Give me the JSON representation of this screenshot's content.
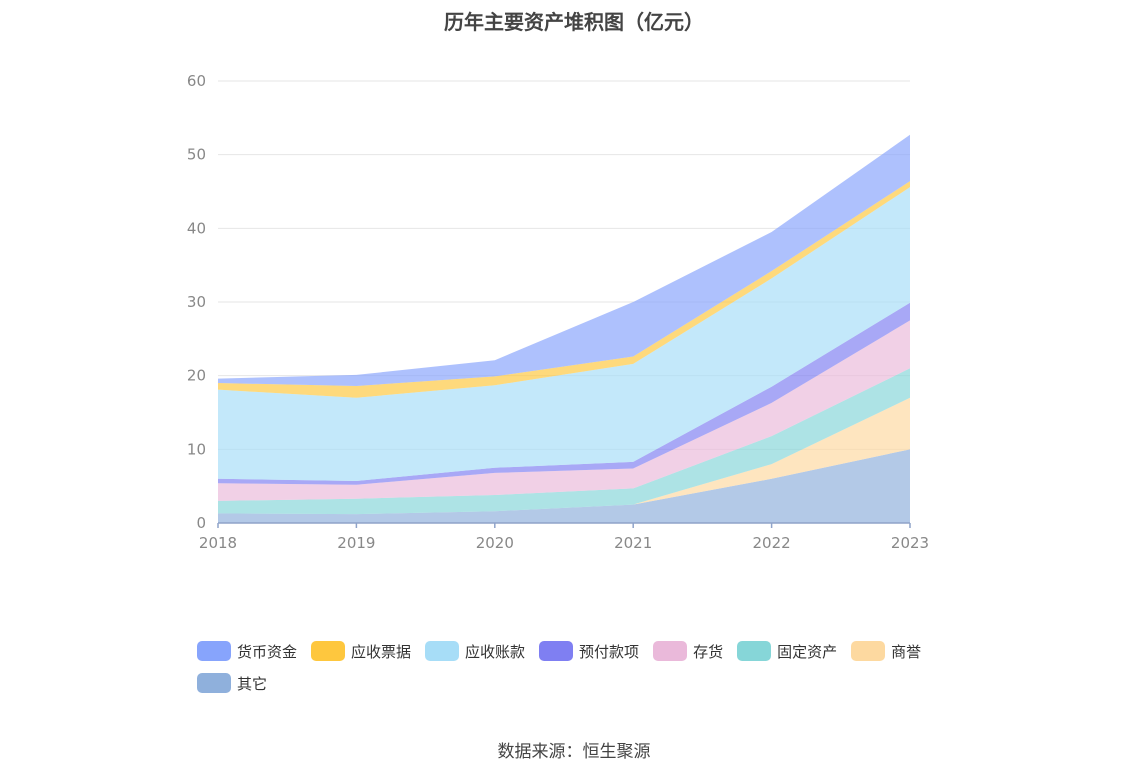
{
  "title": "历年主要资产堆积图（亿元）",
  "source": "数据来源：恒生聚源",
  "chart_data": {
    "type": "area",
    "stacked": true,
    "title": "历年主要资产堆积图（亿元）",
    "categories": [
      "2018",
      "2019",
      "2020",
      "2021",
      "2022",
      "2023"
    ],
    "ylim": [
      0,
      60
    ],
    "yticks": [
      "0",
      "10",
      "20",
      "30",
      "40",
      "50",
      "60"
    ],
    "grid": true,
    "legend_position": "bottom",
    "series": [
      {
        "name": "其它",
        "color": "#8fb0dc",
        "values": [
          1.3,
          1.2,
          1.6,
          2.5,
          6.0,
          10.0
        ]
      },
      {
        "name": "商誉",
        "color": "#fdd9a0",
        "values": [
          0.0,
          0.0,
          0.0,
          0.0,
          2.0,
          7.0
        ]
      },
      {
        "name": "固定资产",
        "color": "#86d6d8",
        "values": [
          1.7,
          2.1,
          2.2,
          2.2,
          3.8,
          4.0
        ]
      },
      {
        "name": "存货",
        "color": "#eab9da",
        "values": [
          2.4,
          1.9,
          3.0,
          2.7,
          4.5,
          6.5
        ]
      },
      {
        "name": "预付款项",
        "color": "#7f7ff2",
        "values": [
          0.6,
          0.5,
          0.7,
          0.9,
          2.2,
          2.4
        ]
      },
      {
        "name": "应收账款",
        "color": "#a7ddf7",
        "values": [
          12.1,
          11.3,
          11.2,
          13.3,
          14.7,
          15.7
        ]
      },
      {
        "name": "应收票据",
        "color": "#fec73e",
        "values": [
          0.9,
          1.6,
          1.2,
          1.0,
          1.0,
          0.8
        ]
      },
      {
        "name": "货币资金",
        "color": "#87a4fc",
        "values": [
          0.6,
          1.5,
          2.2,
          7.4,
          5.3,
          6.3
        ]
      }
    ]
  },
  "legend": [
    {
      "label": "货币资金",
      "color": "#87a4fc"
    },
    {
      "label": "应收票据",
      "color": "#fec73e"
    },
    {
      "label": "应收账款",
      "color": "#a7ddf7"
    },
    {
      "label": "预付款项",
      "color": "#7f7ff2"
    },
    {
      "label": "存货",
      "color": "#eab9da"
    },
    {
      "label": "固定资产",
      "color": "#86d6d8"
    },
    {
      "label": "商誉",
      "color": "#fdd9a0"
    },
    {
      "label": "其它",
      "color": "#8fb0dc"
    }
  ]
}
